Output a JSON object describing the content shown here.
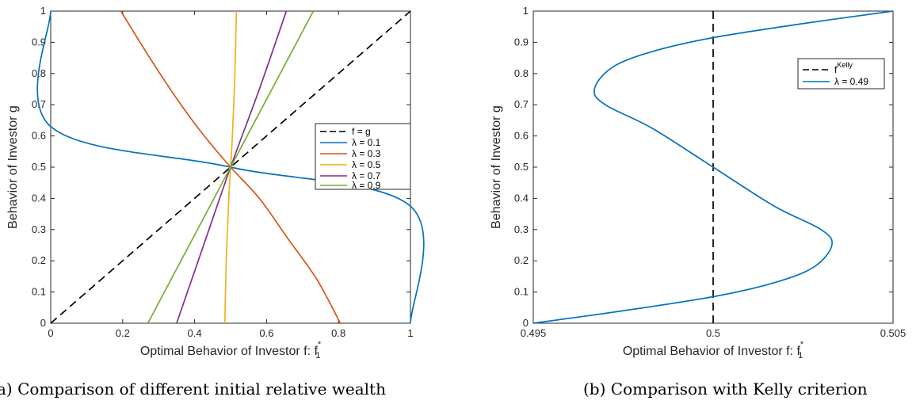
{
  "chart_data": [
    {
      "type": "line",
      "caption": "a) Comparison of different initial relative wealth",
      "xlabel": "Optimal Behavior of Investor f: f",
      "xlabel_sup": "*",
      "xlabel_sub": "1",
      "ylabel": "Behavior of Investor g",
      "xlim": [
        0,
        1
      ],
      "ylim": [
        0,
        1
      ],
      "xticks": [
        0,
        0.2,
        0.4,
        0.6,
        0.8,
        1
      ],
      "xtick_labels": [
        "0",
        "0.2",
        "0.4",
        "0.6",
        "0.8",
        "1"
      ],
      "yticks": [
        0,
        0.1,
        0.2,
        0.3,
        0.4,
        0.5,
        0.6,
        0.7,
        0.8,
        0.9,
        1
      ],
      "ytick_labels": [
        "0",
        "0.1",
        "0.2",
        "0.3",
        "0.4",
        "0.5",
        "0.6",
        "0.7",
        "0.8",
        "0.9",
        "1"
      ],
      "grid": false,
      "legend_position": "right",
      "series": [
        {
          "name": "f = g",
          "color": "#000000",
          "dash": true,
          "points": [
            [
              0,
              0
            ],
            [
              1,
              1
            ]
          ]
        },
        {
          "name": "λ = 0.1",
          "color": "#0072bd",
          "dash": false,
          "points": [
            [
              0,
              1
            ],
            [
              0,
              0.63
            ],
            [
              0.5,
              0.5
            ],
            [
              1,
              0.375
            ],
            [
              1,
              0
            ]
          ]
        },
        {
          "name": "λ = 0.3",
          "color": "#d95319",
          "dash": false,
          "points": [
            [
              0.195,
              1
            ],
            [
              0.27,
              0.86
            ],
            [
              0.35,
              0.72
            ],
            [
              0.42,
              0.61
            ],
            [
              0.5,
              0.5
            ],
            [
              0.58,
              0.4
            ],
            [
              0.66,
              0.27
            ],
            [
              0.74,
              0.14
            ],
            [
              0.805,
              0
            ]
          ]
        },
        {
          "name": "λ = 0.5",
          "color": "#edb120",
          "dash": false,
          "points": [
            [
              0.484,
              0
            ],
            [
              0.488,
              0.2
            ],
            [
              0.495,
              0.4
            ],
            [
              0.5,
              0.5
            ],
            [
              0.505,
              0.6
            ],
            [
              0.512,
              0.8
            ],
            [
              0.516,
              1
            ]
          ]
        },
        {
          "name": "λ = 0.7",
          "color": "#7e2f8e",
          "dash": false,
          "points": [
            [
              0.35,
              0
            ],
            [
              0.425,
              0.25
            ],
            [
              0.5,
              0.5
            ],
            [
              0.58,
              0.75
            ],
            [
              0.655,
              1
            ]
          ]
        },
        {
          "name": "λ = 0.9",
          "color": "#77ac30",
          "dash": false,
          "points": [
            [
              0.27,
              0
            ],
            [
              0.385,
              0.25
            ],
            [
              0.5,
              0.5
            ],
            [
              0.615,
              0.75
            ],
            [
              0.73,
              1
            ]
          ]
        }
      ]
    },
    {
      "type": "line",
      "caption": "(b) Comparison with Kelly criterion",
      "xlabel": "Optimal Behavior of Investor f: f",
      "xlabel_sup": "*",
      "xlabel_sub": "1",
      "ylabel": "Behavior of Investor g",
      "xlim": [
        0.495,
        0.505
      ],
      "ylim": [
        0,
        1
      ],
      "xticks": [
        0.495,
        0.5,
        0.505
      ],
      "xtick_labels": [
        "0.495",
        "0.5",
        "0.505"
      ],
      "yticks": [
        0,
        0.1,
        0.2,
        0.3,
        0.4,
        0.5,
        0.6,
        0.7,
        0.8,
        0.9,
        1
      ],
      "ytick_labels": [
        "0",
        "0.1",
        "0.2",
        "0.3",
        "0.4",
        "0.5",
        "0.6",
        "0.7",
        "0.8",
        "0.9",
        "1"
      ],
      "grid": false,
      "legend_position": "top-right",
      "series": [
        {
          "name": "f",
          "name_sup": "Kelly",
          "color": "#000000",
          "dash": true,
          "points": [
            [
              0.5,
              0
            ],
            [
              0.5,
              1
            ]
          ]
        },
        {
          "name": "λ = 0.49",
          "color": "#0072bd",
          "dash": false,
          "points": [
            [
              0.495,
              0
            ],
            [
              0.4975,
              0.04
            ],
            [
              0.5,
              0.085
            ],
            [
              0.5017,
              0.13
            ],
            [
              0.5028,
              0.18
            ],
            [
              0.5033,
              0.25
            ],
            [
              0.503,
              0.3
            ],
            [
              0.5017,
              0.375
            ],
            [
              0.5,
              0.5
            ],
            [
              0.4983,
              0.625
            ],
            [
              0.497,
              0.7
            ],
            [
              0.4967,
              0.75
            ],
            [
              0.4972,
              0.82
            ],
            [
              0.4983,
              0.87
            ],
            [
              0.5,
              0.915
            ],
            [
              0.5025,
              0.96
            ],
            [
              0.505,
              1
            ]
          ]
        }
      ]
    }
  ]
}
